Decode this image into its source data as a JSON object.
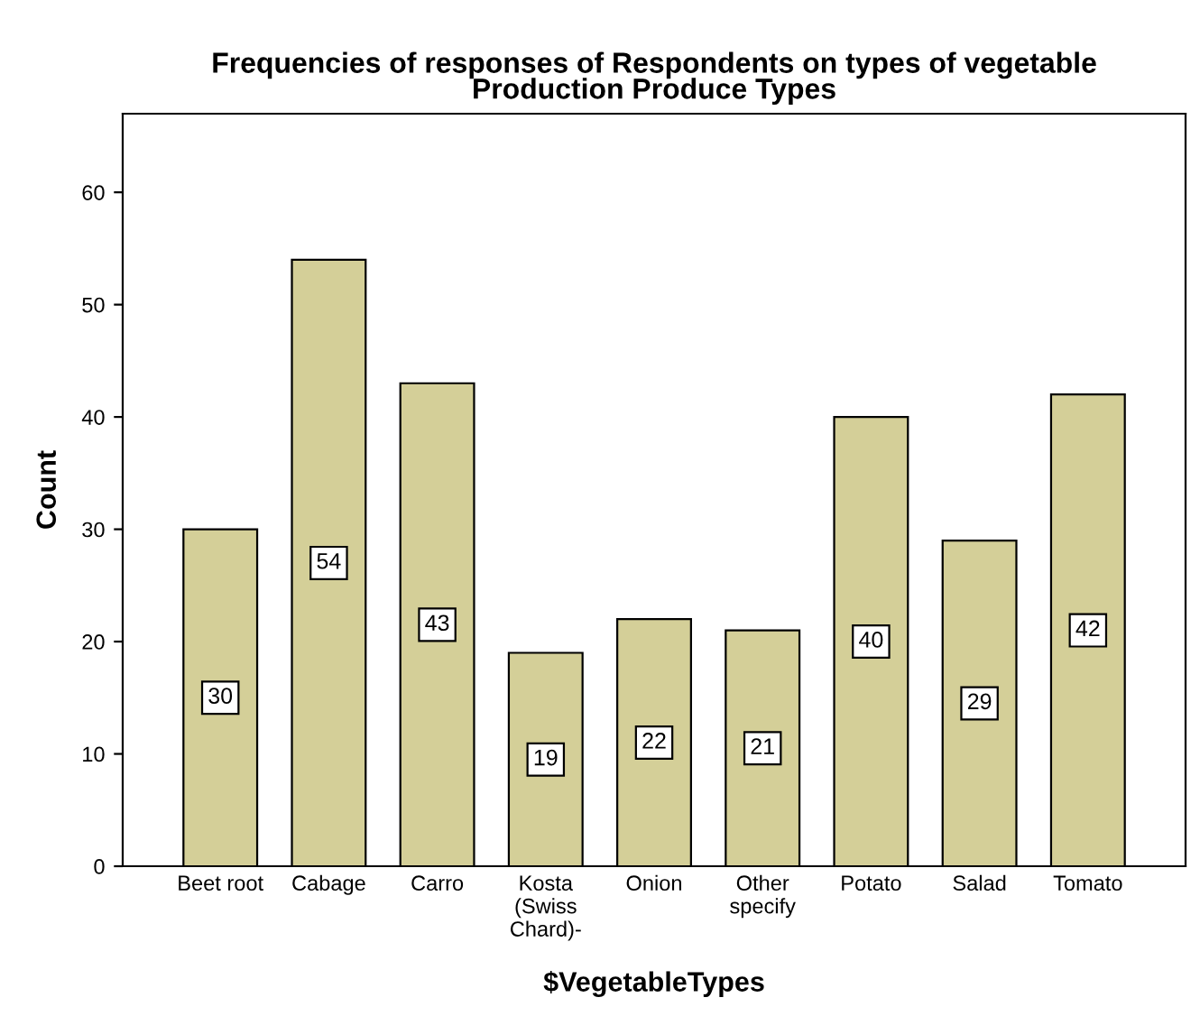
{
  "chart_data": {
    "type": "bar",
    "title": "Frequencies of responses of Respondents on types of vegetable\nProduction Produce Types",
    "xlabel": "$VegetableTypes",
    "ylabel": "Count",
    "categories": [
      "Beet root",
      "Cabage",
      "Carro",
      "Kosta\n(Swiss\nChard)-",
      "Onion",
      "Other\nspecify",
      "Potato",
      "Salad",
      "Tomato"
    ],
    "values": [
      30,
      54,
      43,
      19,
      22,
      21,
      40,
      29,
      42
    ],
    "color": "#d4cf98",
    "ylim": [
      0,
      67
    ],
    "yticks": [
      0,
      10,
      20,
      30,
      40,
      50,
      60
    ],
    "grid": false,
    "data_labels": true
  }
}
